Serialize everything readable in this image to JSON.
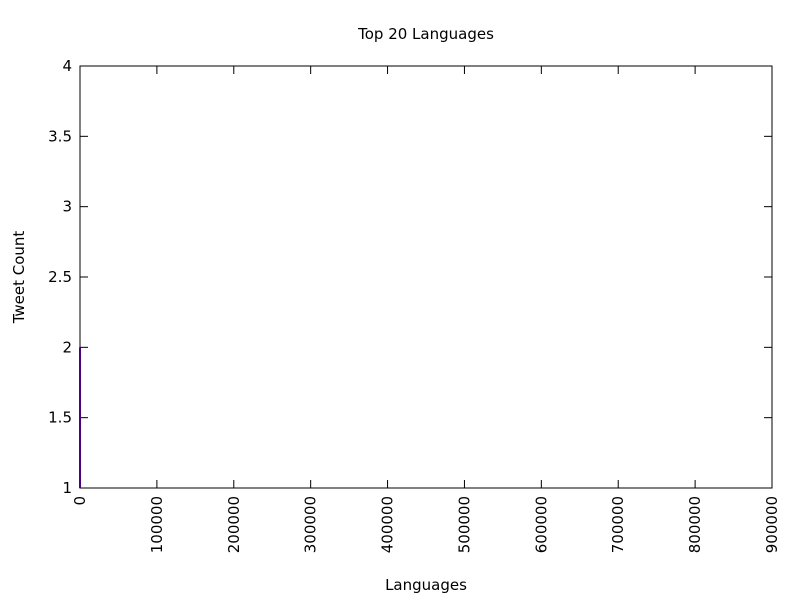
{
  "chart_data": {
    "type": "line",
    "title": "Top 20 Languages",
    "xlabel": "Languages",
    "ylabel": "Tweet Count",
    "xlim": [
      0,
      900000
    ],
    "ylim": [
      1,
      4
    ],
    "x_ticks": [
      "0",
      "100000",
      "200000",
      "300000",
      "400000",
      "500000",
      "600000",
      "700000",
      "800000",
      "900000"
    ],
    "y_ticks": [
      "1",
      "1.5",
      "2",
      "2.5",
      "3",
      "3.5",
      "4"
    ],
    "x_tick_values": [
      0,
      100000,
      200000,
      300000,
      400000,
      500000,
      600000,
      700000,
      800000,
      900000
    ],
    "y_tick_values": [
      1,
      1.5,
      2,
      2.5,
      3,
      3.5,
      4
    ],
    "grid": false,
    "series": [
      {
        "color": "#4b0082",
        "x": [
          0,
          0
        ],
        "y": [
          1,
          2
        ]
      }
    ]
  }
}
